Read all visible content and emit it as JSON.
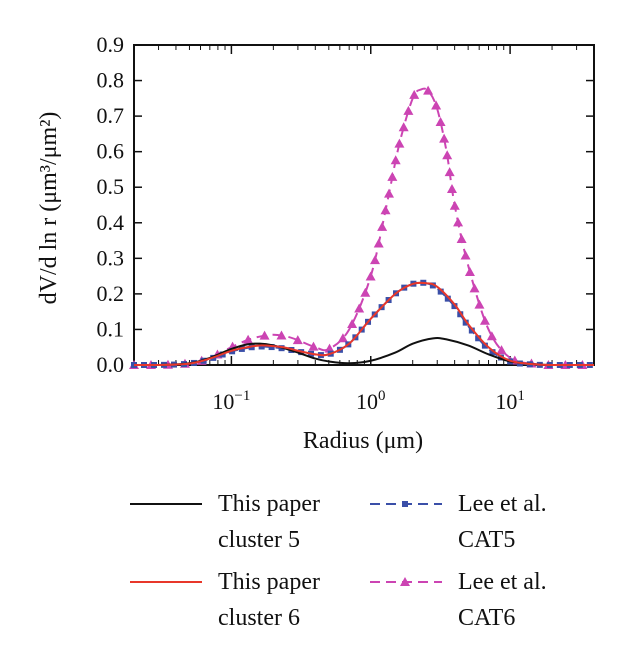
{
  "chart_data": {
    "type": "line",
    "x_scale": "log",
    "xlim": [
      0.02,
      40
    ],
    "ylim": [
      0,
      0.9
    ],
    "xlabel": "Radius (μm)",
    "ylabel": "dV/d ln r (μm³/μm²)",
    "y_ticks": [
      "0.0",
      "0.1",
      "0.2",
      "0.3",
      "0.4",
      "0.5",
      "0.6",
      "0.7",
      "0.8",
      "0.9"
    ],
    "x_ticks": [
      {
        "value": 0.1,
        "base": "10",
        "exp": "−1"
      },
      {
        "value": 1,
        "base": "10",
        "exp": "0"
      },
      {
        "value": 10,
        "base": "10",
        "exp": "1"
      }
    ],
    "legend_position": "below",
    "series": [
      {
        "name": "This paper cluster 5",
        "legend_lines": [
          "This paper",
          "cluster 5"
        ],
        "color": "#111111",
        "style": "solid",
        "marker": "none",
        "x": [
          0.02,
          0.03,
          0.05,
          0.07,
          0.1,
          0.13,
          0.16,
          0.2,
          0.25,
          0.3,
          0.4,
          0.5,
          0.7,
          1.0,
          1.5,
          2.0,
          2.8,
          3.5,
          5.0,
          7.0,
          10.0,
          15.0,
          20.0,
          40.0
        ],
        "y": [
          0.0,
          0.0,
          0.005,
          0.02,
          0.045,
          0.058,
          0.06,
          0.055,
          0.045,
          0.035,
          0.018,
          0.01,
          0.005,
          0.012,
          0.035,
          0.06,
          0.075,
          0.072,
          0.055,
          0.03,
          0.01,
          0.002,
          0.0,
          0.0
        ]
      },
      {
        "name": "This paper cluster 6",
        "legend_lines": [
          "This paper",
          "cluster 6"
        ],
        "color": "#e8372a",
        "style": "solid",
        "marker": "none",
        "x": [
          0.02,
          0.03,
          0.05,
          0.07,
          0.1,
          0.13,
          0.16,
          0.2,
          0.25,
          0.3,
          0.4,
          0.5,
          0.7,
          1.0,
          1.5,
          2.0,
          2.5,
          3.0,
          4.0,
          5.0,
          7.0,
          10.0,
          15.0,
          20.0,
          40.0
        ],
        "y": [
          0.0,
          0.0,
          0.004,
          0.018,
          0.04,
          0.05,
          0.055,
          0.053,
          0.048,
          0.04,
          0.03,
          0.03,
          0.06,
          0.13,
          0.2,
          0.228,
          0.23,
          0.22,
          0.17,
          0.115,
          0.05,
          0.012,
          0.002,
          0.0,
          0.0
        ]
      },
      {
        "name": "Lee et al. CAT5",
        "legend_lines": [
          "Lee et al.",
          "CAT5"
        ],
        "color": "#3a4fa8",
        "style": "dashed",
        "marker": "square",
        "x": [
          0.02,
          0.03,
          0.05,
          0.07,
          0.1,
          0.13,
          0.16,
          0.2,
          0.25,
          0.3,
          0.4,
          0.5,
          0.7,
          1.0,
          1.5,
          2.0,
          2.5,
          3.0,
          4.0,
          5.0,
          7.0,
          10.0,
          15.0,
          20.0,
          40.0
        ],
        "y": [
          0.0,
          0.0,
          0.004,
          0.017,
          0.038,
          0.048,
          0.052,
          0.05,
          0.045,
          0.038,
          0.03,
          0.03,
          0.06,
          0.13,
          0.2,
          0.228,
          0.23,
          0.215,
          0.165,
          0.11,
          0.045,
          0.01,
          0.001,
          0.0,
          0.0
        ]
      },
      {
        "name": "Lee et al. CAT6",
        "legend_lines": [
          "Lee et al.",
          "CAT6"
        ],
        "color": "#cc44b3",
        "style": "dashed",
        "marker": "triangle",
        "x": [
          0.02,
          0.03,
          0.05,
          0.07,
          0.1,
          0.13,
          0.16,
          0.2,
          0.25,
          0.3,
          0.4,
          0.5,
          0.7,
          1.0,
          1.3,
          1.6,
          2.0,
          2.3,
          2.6,
          3.0,
          3.5,
          4.0,
          5.0,
          7.0,
          10.0,
          15.0,
          20.0,
          40.0
        ],
        "y": [
          0.0,
          0.0,
          0.005,
          0.02,
          0.05,
          0.07,
          0.08,
          0.085,
          0.08,
          0.07,
          0.05,
          0.045,
          0.1,
          0.25,
          0.45,
          0.62,
          0.75,
          0.775,
          0.77,
          0.72,
          0.6,
          0.45,
          0.28,
          0.1,
          0.02,
          0.003,
          0.0,
          0.0
        ]
      }
    ]
  }
}
